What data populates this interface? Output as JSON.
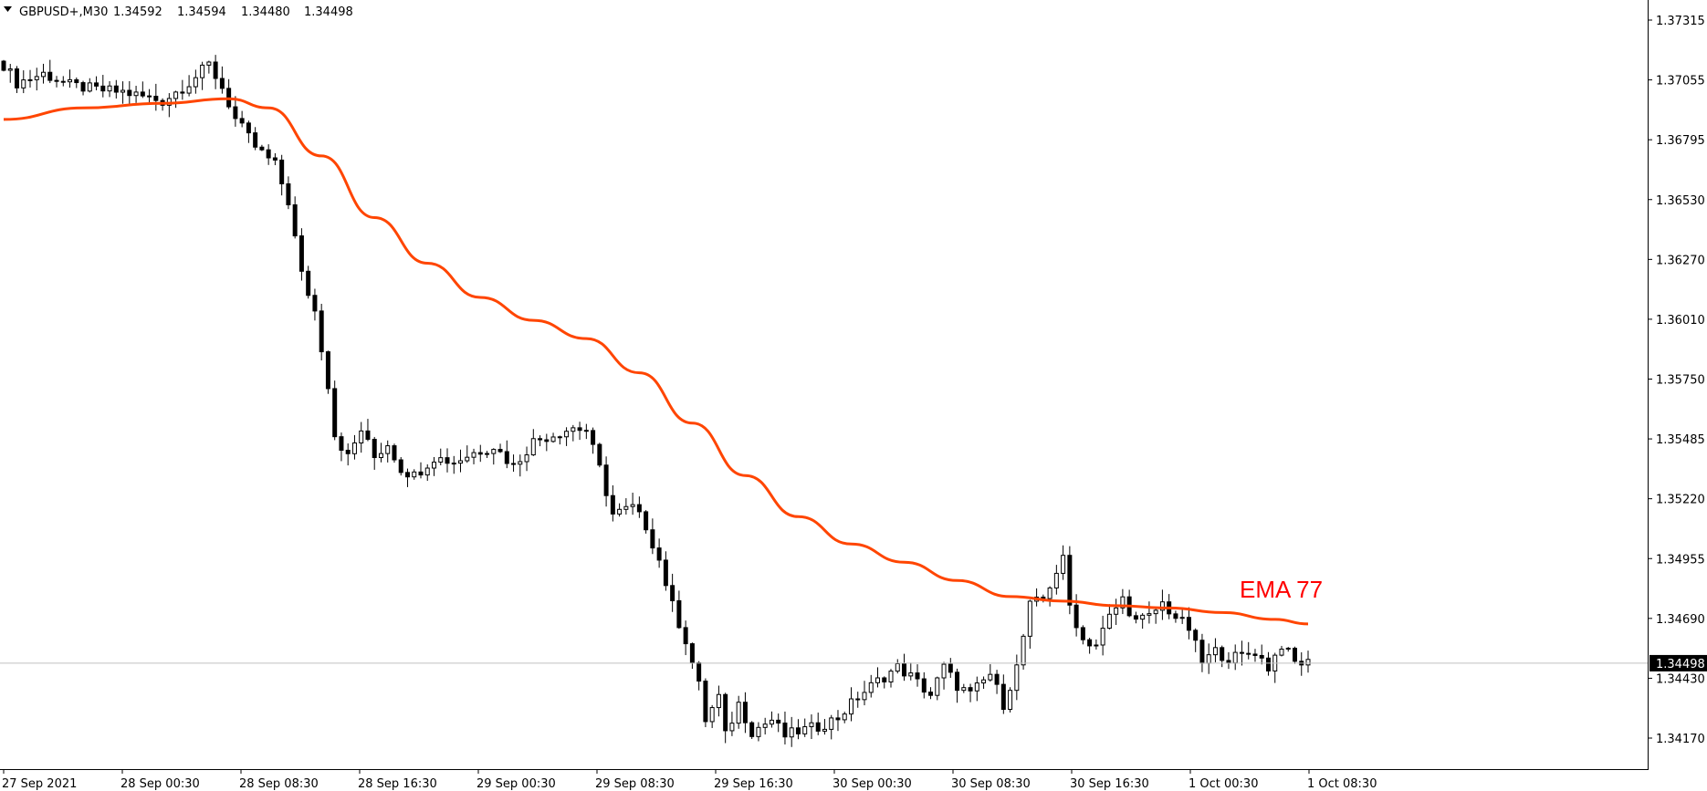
{
  "header": {
    "symbol": "GBPUSD+,M30",
    "open": "1.34592",
    "high": "1.34594",
    "low": "1.34480",
    "close": "1.34498"
  },
  "chart_data": {
    "type": "candlestick",
    "price_axis_ticks": [
      "1.37315",
      "1.37055",
      "1.36795",
      "1.36530",
      "1.36270",
      "1.36010",
      "1.35750",
      "1.35485",
      "1.35220",
      "1.34955",
      "1.34690",
      "1.34430",
      "1.34170"
    ],
    "time_axis_labels": [
      "27 Sep 2021",
      "28 Sep 00:30",
      "28 Sep 08:30",
      "28 Sep 16:30",
      "29 Sep 00:30",
      "29 Sep 08:30",
      "29 Sep 16:30",
      "30 Sep 00:30",
      "30 Sep 08:30",
      "30 Sep 16:30",
      "1 Oct 00:30",
      "1 Oct 08:30"
    ],
    "current_price": "1.34498",
    "indicator_label": "EMA 77",
    "ema_period": 77,
    "ylim": [
      1.3405,
      1.3737
    ],
    "grid": false,
    "colors": {
      "background": "#ffffff",
      "candle_bull_fill": "#ffffff",
      "candle_bear_fill": "#000000",
      "candle_outline": "#000000",
      "ema_line": "#ff4500",
      "ema_label": "#ff0000",
      "price_tag_bg": "#000000",
      "price_tag_text": "#ffffff",
      "price_line": "#c0c0c0",
      "axis": "#000000"
    },
    "anchors": [
      {
        "bar": 0,
        "price": 1.3712
      },
      {
        "bar": 2,
        "price": 1.3704
      },
      {
        "bar": 6,
        "price": 1.3708
      },
      {
        "bar": 10,
        "price": 1.3703
      },
      {
        "bar": 14,
        "price": 1.3701
      },
      {
        "bar": 18,
        "price": 1.37
      },
      {
        "bar": 21,
        "price": 1.3698
      },
      {
        "bar": 24,
        "price": 1.3696
      },
      {
        "bar": 28,
        "price": 1.3704
      },
      {
        "bar": 31,
        "price": 1.3712
      },
      {
        "bar": 33,
        "price": 1.3702
      },
      {
        "bar": 35,
        "price": 1.3688
      },
      {
        "bar": 38,
        "price": 1.3676
      },
      {
        "bar": 41,
        "price": 1.3668
      },
      {
        "bar": 43,
        "price": 1.3652
      },
      {
        "bar": 45,
        "price": 1.362
      },
      {
        "bar": 47,
        "price": 1.3604
      },
      {
        "bar": 48,
        "price": 1.3588
      },
      {
        "bar": 49,
        "price": 1.3572
      },
      {
        "bar": 50,
        "price": 1.355
      },
      {
        "bar": 52,
        "price": 1.354
      },
      {
        "bar": 54,
        "price": 1.3552
      },
      {
        "bar": 56,
        "price": 1.354
      },
      {
        "bar": 58,
        "price": 1.3546
      },
      {
        "bar": 60,
        "price": 1.3535
      },
      {
        "bar": 62,
        "price": 1.3532
      },
      {
        "bar": 65,
        "price": 1.354
      },
      {
        "bar": 68,
        "price": 1.3538
      },
      {
        "bar": 71,
        "price": 1.3542
      },
      {
        "bar": 74,
        "price": 1.3545
      },
      {
        "bar": 77,
        "price": 1.3536
      },
      {
        "bar": 80,
        "price": 1.3547
      },
      {
        "bar": 83,
        "price": 1.355
      },
      {
        "bar": 86,
        "price": 1.3553
      },
      {
        "bar": 88,
        "price": 1.3552
      },
      {
        "bar": 90,
        "price": 1.3535
      },
      {
        "bar": 92,
        "price": 1.3515
      },
      {
        "bar": 95,
        "price": 1.3518
      },
      {
        "bar": 97,
        "price": 1.351
      },
      {
        "bar": 99,
        "price": 1.3495
      },
      {
        "bar": 101,
        "price": 1.3475
      },
      {
        "bar": 103,
        "price": 1.346
      },
      {
        "bar": 105,
        "price": 1.344
      },
      {
        "bar": 106,
        "price": 1.3425
      },
      {
        "bar": 108,
        "price": 1.3435
      },
      {
        "bar": 109,
        "price": 1.3418
      },
      {
        "bar": 111,
        "price": 1.3432
      },
      {
        "bar": 113,
        "price": 1.342
      },
      {
        "bar": 116,
        "price": 1.3425
      },
      {
        "bar": 118,
        "price": 1.3418
      },
      {
        "bar": 120,
        "price": 1.342
      },
      {
        "bar": 123,
        "price": 1.3422
      },
      {
        "bar": 126,
        "price": 1.3426
      },
      {
        "bar": 129,
        "price": 1.3435
      },
      {
        "bar": 132,
        "price": 1.3442
      },
      {
        "bar": 135,
        "price": 1.3448
      },
      {
        "bar": 137,
        "price": 1.3444
      },
      {
        "bar": 140,
        "price": 1.3436
      },
      {
        "bar": 142,
        "price": 1.3448
      },
      {
        "bar": 144,
        "price": 1.344
      },
      {
        "bar": 146,
        "price": 1.3436
      },
      {
        "bar": 149,
        "price": 1.3445
      },
      {
        "bar": 151,
        "price": 1.3432
      },
      {
        "bar": 153,
        "price": 1.3448
      },
      {
        "bar": 155,
        "price": 1.3475
      },
      {
        "bar": 157,
        "price": 1.3478
      },
      {
        "bar": 159,
        "price": 1.349
      },
      {
        "bar": 160,
        "price": 1.3495
      },
      {
        "bar": 161,
        "price": 1.3475
      },
      {
        "bar": 163,
        "price": 1.346
      },
      {
        "bar": 165,
        "price": 1.3458
      },
      {
        "bar": 167,
        "price": 1.347
      },
      {
        "bar": 169,
        "price": 1.3478
      },
      {
        "bar": 171,
        "price": 1.3468
      },
      {
        "bar": 173,
        "price": 1.347
      },
      {
        "bar": 175,
        "price": 1.3476
      },
      {
        "bar": 177,
        "price": 1.347
      },
      {
        "bar": 179,
        "price": 1.3465
      },
      {
        "bar": 181,
        "price": 1.345
      },
      {
        "bar": 183,
        "price": 1.3455
      },
      {
        "bar": 185,
        "price": 1.3452
      },
      {
        "bar": 187,
        "price": 1.3453
      },
      {
        "bar": 189,
        "price": 1.3455
      },
      {
        "bar": 191,
        "price": 1.3448
      },
      {
        "bar": 193,
        "price": 1.3458
      },
      {
        "bar": 195,
        "price": 1.345
      }
    ],
    "ema_points": [
      {
        "bar": 0,
        "price": 1.3688
      },
      {
        "bar": 12,
        "price": 1.3693
      },
      {
        "bar": 24,
        "price": 1.3695
      },
      {
        "bar": 34,
        "price": 1.3697
      },
      {
        "bar": 40,
        "price": 1.3693
      },
      {
        "bar": 48,
        "price": 1.3672
      },
      {
        "bar": 56,
        "price": 1.3645
      },
      {
        "bar": 64,
        "price": 1.3625
      },
      {
        "bar": 72,
        "price": 1.361
      },
      {
        "bar": 80,
        "price": 1.36
      },
      {
        "bar": 88,
        "price": 1.3592
      },
      {
        "bar": 96,
        "price": 1.3577
      },
      {
        "bar": 104,
        "price": 1.3555
      },
      {
        "bar": 112,
        "price": 1.3532
      },
      {
        "bar": 120,
        "price": 1.3514
      },
      {
        "bar": 128,
        "price": 1.3502
      },
      {
        "bar": 136,
        "price": 1.3494
      },
      {
        "bar": 144,
        "price": 1.3486
      },
      {
        "bar": 152,
        "price": 1.3479
      },
      {
        "bar": 160,
        "price": 1.3477
      },
      {
        "bar": 168,
        "price": 1.3475
      },
      {
        "bar": 176,
        "price": 1.3474
      },
      {
        "bar": 184,
        "price": 1.3472
      },
      {
        "bar": 192,
        "price": 1.3469
      },
      {
        "bar": 197,
        "price": 1.3467
      }
    ],
    "bar_count": 198
  }
}
